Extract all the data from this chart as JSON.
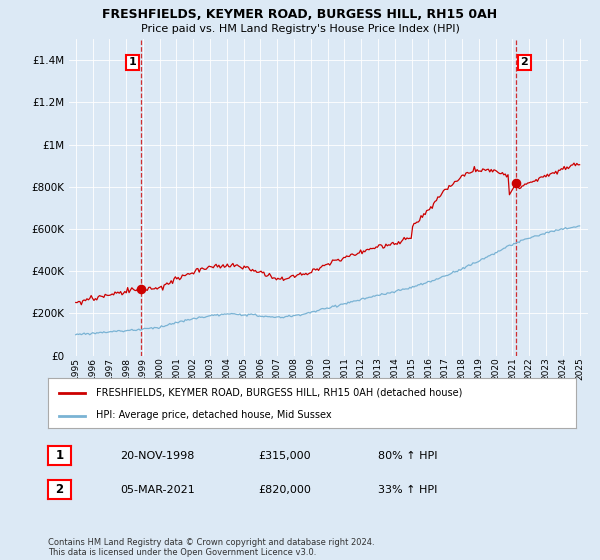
{
  "title1": "FRESHFIELDS, KEYMER ROAD, BURGESS HILL, RH15 0AH",
  "title2": "Price paid vs. HM Land Registry's House Price Index (HPI)",
  "legend_label1": "FRESHFIELDS, KEYMER ROAD, BURGESS HILL, RH15 0AH (detached house)",
  "legend_label2": "HPI: Average price, detached house, Mid Sussex",
  "sale1_label": "1",
  "sale1_date": "20-NOV-1998",
  "sale1_price": "£315,000",
  "sale1_hpi": "80% ↑ HPI",
  "sale2_label": "2",
  "sale2_date": "05-MAR-2021",
  "sale2_price": "£820,000",
  "sale2_hpi": "33% ↑ HPI",
  "footnote": "Contains HM Land Registry data © Crown copyright and database right 2024.\nThis data is licensed under the Open Government Licence v3.0.",
  "hpi_color": "#7ab3d4",
  "price_color": "#cc0000",
  "vline_color": "#cc0000",
  "background_color": "#dce9f5",
  "plot_bg": "#dce9f5",
  "grid_color": "#ffffff",
  "ylim_max": 1500000,
  "sale1_year": 1998.9,
  "sale2_year": 2021.2,
  "sale1_price_val": 315000,
  "sale2_price_val": 820000
}
